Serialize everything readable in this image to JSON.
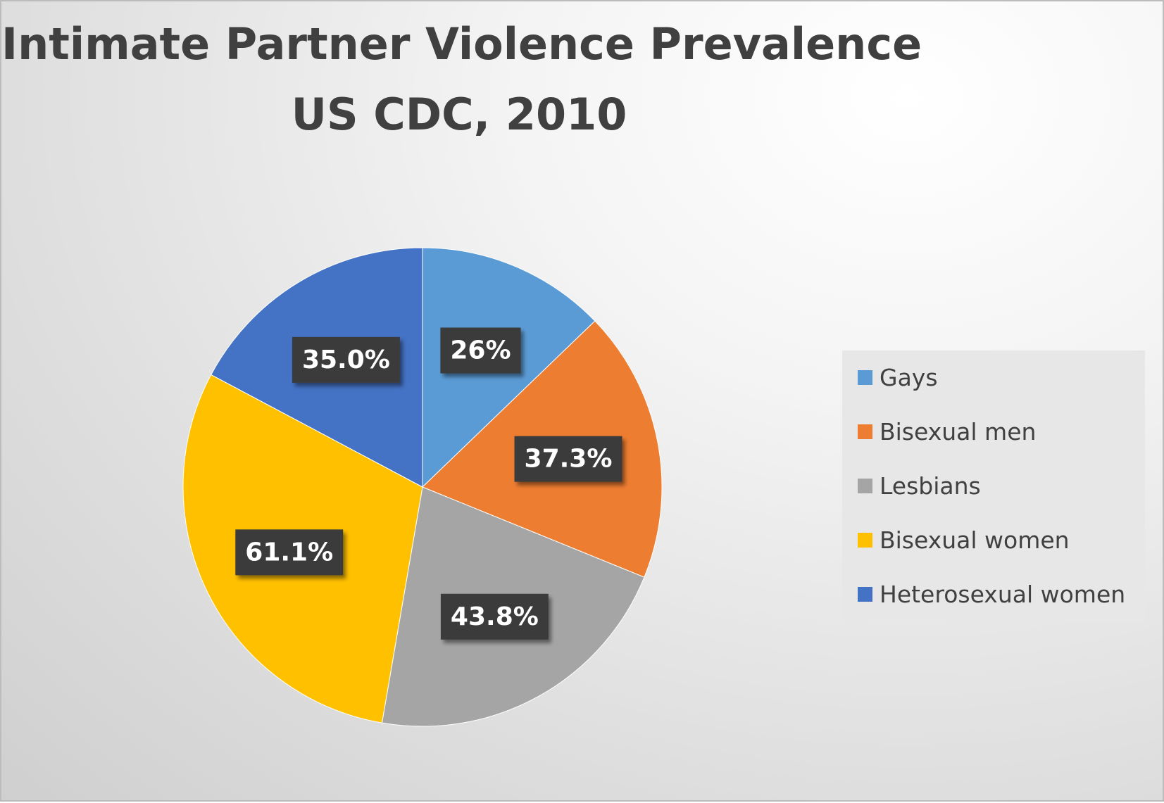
{
  "chart_data": {
    "type": "pie",
    "title_lines": [
      "Intimate Partner Violence Prevalence",
      "US CDC, 2010"
    ],
    "legend_position": "right",
    "series": [
      {
        "name": "Gays",
        "value": 26,
        "label": "26%",
        "color": "#5B9BD5"
      },
      {
        "name": "Bisexual men",
        "value": 37.3,
        "label": "37.3%",
        "color": "#ED7D31"
      },
      {
        "name": "Lesbians",
        "value": 43.8,
        "label": "43.8%",
        "color": "#A5A5A5"
      },
      {
        "name": "Bisexual women",
        "value": 61.1,
        "label": "61.1%",
        "color": "#FFC000"
      },
      {
        "name": "Heterosexual women",
        "value": 35.0,
        "label": "35.0%",
        "color": "#4472C4"
      }
    ]
  }
}
